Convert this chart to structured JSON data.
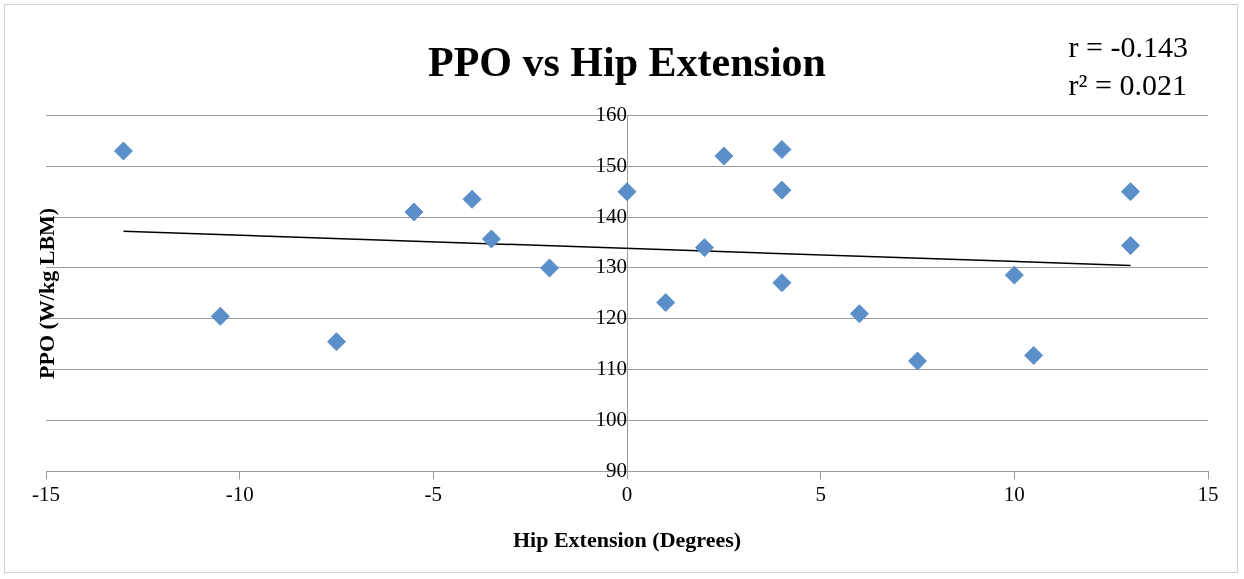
{
  "chart_data": {
    "type": "scatter",
    "title": "PPO vs Hip Extension",
    "xlabel": "Hip Extension (Degrees)",
    "ylabel": "PPO (W/kg LBM)",
    "annotations": [
      "r = -0.143",
      "r² = 0.021"
    ],
    "xlim": [
      -15,
      15
    ],
    "xticks": [
      -15,
      -10,
      -5,
      0,
      5,
      10,
      15
    ],
    "ylim": [
      90,
      160
    ],
    "yticks": [
      90,
      100,
      110,
      120,
      130,
      140,
      150,
      160
    ],
    "grid": "y",
    "legend": false,
    "marker": "diamond",
    "series": [
      {
        "color": "#5b8fc9",
        "x": [
          -13,
          -10.5,
          -7.5,
          -5.5,
          -4,
          -3.5,
          -2,
          0,
          1,
          2,
          2.5,
          4,
          4,
          4,
          6,
          7.5,
          10,
          10.5,
          13,
          13
        ],
        "values": [
          153,
          120.5,
          115.5,
          141,
          143.5,
          135.7,
          130,
          145,
          123.2,
          134,
          152,
          153.3,
          145.3,
          127.1,
          121,
          111.7,
          128.6,
          112.8,
          145,
          134.4
        ]
      },
      {
        "type": "line",
        "color": "#000000",
        "x": [
          -13,
          13
        ],
        "values": [
          137.2,
          130.5
        ],
        "marker": "none"
      }
    ]
  }
}
